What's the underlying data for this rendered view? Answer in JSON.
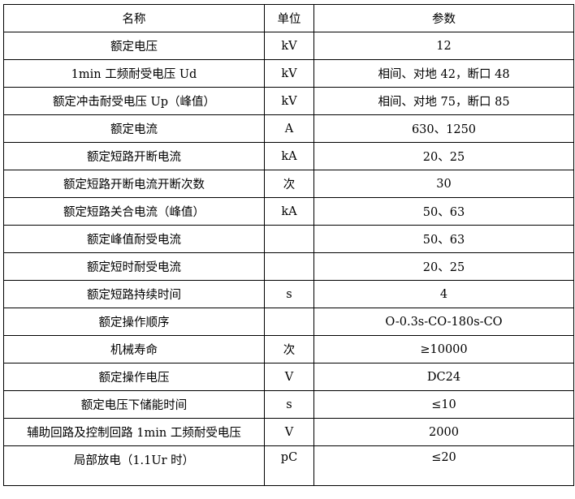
{
  "headers": {
    "name": "名称",
    "unit": "单位",
    "param": "参数"
  },
  "rows": [
    {
      "name": "额定电压",
      "unit": "kV",
      "value": "12"
    },
    {
      "name": "1min 工频耐受电压 Ud",
      "unit": "kV",
      "value": "相间、对地 42，断口 48"
    },
    {
      "name": "额定冲击耐受电压 Up（峰值）",
      "unit": "kV",
      "value": "相间、对地 75，断口 85"
    },
    {
      "name": "额定电流",
      "unit": "A",
      "value": "630、1250"
    },
    {
      "name": "额定短路开断电流",
      "unit": "kA",
      "value": "20、25"
    },
    {
      "name": "额定短路开断电流开断次数",
      "unit": "次",
      "value": "30"
    },
    {
      "name": "额定短路关合电流（峰值）",
      "unit": "kA",
      "value": "50、63"
    },
    {
      "name": "额定峰值耐受电流",
      "unit": "",
      "value": "50、63"
    },
    {
      "name": "额定短时耐受电流",
      "unit": "",
      "value": "20、25"
    },
    {
      "name": "额定短路持续时间",
      "unit": "s",
      "value": "4"
    },
    {
      "name": "额定操作顺序",
      "unit": "",
      "value": "O-0.3s-CO-180s-CO"
    },
    {
      "name": "机械寿命",
      "unit": "次",
      "value": "≥10000"
    },
    {
      "name": "额定操作电压",
      "unit": "V",
      "value": "DC24"
    },
    {
      "name": "额定电压下储能时间",
      "unit": "s",
      "value": "≤10"
    },
    {
      "name": "辅助回路及控制回路 1min 工频耐受电压",
      "unit": "V",
      "value": "2000"
    },
    {
      "name": "局部放电（1.1Ur 时）",
      "unit": "pC",
      "value": "≤20"
    }
  ]
}
